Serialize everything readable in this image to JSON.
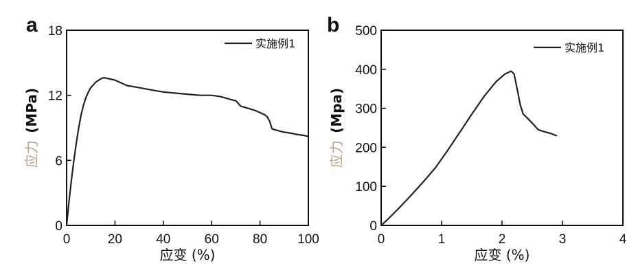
{
  "chart_data": [
    {
      "panel": "a",
      "type": "line",
      "xlabel": "应变 (%)",
      "ylabel": "应力 (MPa)",
      "xlim": [
        0,
        100
      ],
      "ylim": [
        0,
        18
      ],
      "xticks": [
        0,
        20,
        40,
        60,
        80,
        100
      ],
      "yticks": [
        0,
        6,
        12,
        18
      ],
      "legend_position": "top-right",
      "series": [
        {
          "name": "实施例1",
          "color": "#222222",
          "x": [
            0,
            1,
            2,
            3,
            4,
            5,
            6,
            7,
            8,
            9,
            10,
            12,
            14,
            15,
            16,
            18,
            20,
            22,
            25,
            30,
            35,
            40,
            45,
            50,
            55,
            60,
            63,
            65,
            68,
            70,
            72,
            75,
            78,
            80,
            82,
            83,
            84,
            85,
            88,
            90,
            93,
            95,
            98,
            100
          ],
          "y": [
            0,
            2.2,
            4.2,
            6.0,
            7.6,
            9.0,
            10.2,
            11.1,
            11.8,
            12.3,
            12.7,
            13.2,
            13.5,
            13.6,
            13.6,
            13.5,
            13.4,
            13.2,
            12.9,
            12.7,
            12.5,
            12.3,
            12.2,
            12.1,
            12.0,
            12.0,
            11.9,
            11.8,
            11.6,
            11.5,
            11.0,
            10.8,
            10.6,
            10.4,
            10.2,
            10.0,
            9.6,
            8.9,
            8.7,
            8.6,
            8.5,
            8.4,
            8.3,
            8.2
          ]
        }
      ]
    },
    {
      "panel": "b",
      "type": "line",
      "xlabel": "应变 (%)",
      "ylabel": "应力 (Mpa)",
      "xlim": [
        0,
        4
      ],
      "ylim": [
        0,
        500
      ],
      "xticks": [
        0,
        1,
        2,
        3,
        4
      ],
      "yticks": [
        0,
        100,
        200,
        300,
        400,
        500
      ],
      "legend_position": "top-right",
      "series": [
        {
          "name": "实施例1",
          "color": "#222222",
          "x": [
            0,
            0.1,
            0.3,
            0.5,
            0.7,
            0.9,
            1.1,
            1.3,
            1.5,
            1.7,
            1.9,
            2.05,
            2.15,
            2.2,
            2.25,
            2.3,
            2.35,
            2.4,
            2.5,
            2.6,
            2.7,
            2.8,
            2.9
          ],
          "y": [
            0,
            14,
            45,
            78,
            112,
            148,
            192,
            238,
            285,
            330,
            368,
            388,
            395,
            388,
            350,
            310,
            285,
            278,
            262,
            245,
            240,
            236,
            230
          ]
        }
      ]
    }
  ],
  "panels": [
    {
      "id": "a",
      "label": "a",
      "xlabel": "应变 (%)",
      "ylabel_cjk": "应力",
      "ylabel_unit": "(MPa)",
      "xtick_labels": [
        "0",
        "20",
        "40",
        "60",
        "80",
        "100"
      ],
      "ytick_labels": [
        "0",
        "6",
        "12",
        "18"
      ],
      "legend_label": "实施例1"
    },
    {
      "id": "b",
      "label": "b",
      "xlabel": "应变 (%)",
      "ylabel_cjk": "应力",
      "ylabel_unit": "(Mpa)",
      "xtick_labels": [
        "0",
        "1",
        "2",
        "3",
        "4"
      ],
      "ytick_labels": [
        "0",
        "100",
        "200",
        "300",
        "400",
        "500"
      ],
      "legend_label": "实施例1"
    }
  ]
}
